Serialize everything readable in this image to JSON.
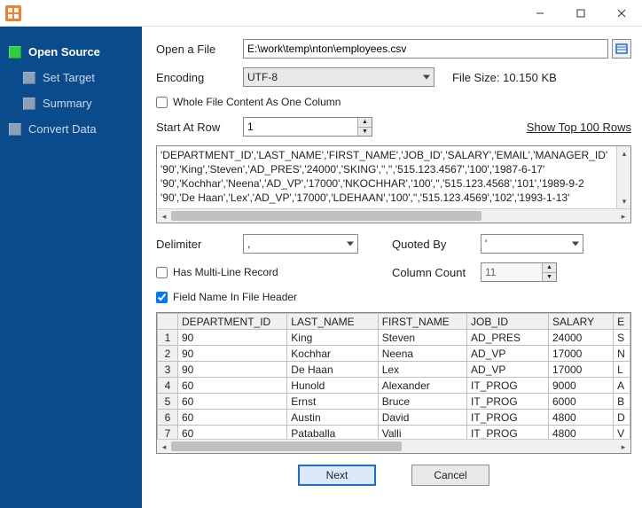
{
  "sidebar": {
    "items": [
      {
        "label": "Open Source",
        "active": true
      },
      {
        "label": "Set Target"
      },
      {
        "label": "Summary"
      },
      {
        "label": "Convert Data"
      }
    ]
  },
  "open_file": {
    "label": "Open a File",
    "value": "E:\\work\\temp\\nton\\employees.csv"
  },
  "encoding": {
    "label": "Encoding",
    "value": "UTF-8"
  },
  "file_size": {
    "label": "File Size:",
    "value": "10.150 KB"
  },
  "whole_file_chk": "Whole File Content As One Column",
  "start_at_row": {
    "label": "Start At Row",
    "value": "1"
  },
  "show_top_rows": {
    "label": "Show Top 100 Rows"
  },
  "preview_lines": [
    "'DEPARTMENT_ID','LAST_NAME','FIRST_NAME','JOB_ID','SALARY','EMAIL','MANAGER_ID'",
    "'90','King','Steven','AD_PRES','24000','SKING','','','515.123.4567','100','1987-6-17'",
    "'90','Kochhar','Neena','AD_VP','17000','NKOCHHAR','100','','515.123.4568','101','1989-9-2",
    "'90','De Haan','Lex','AD_VP','17000','LDEHAAN','100','','515.123.4569','102','1993-1-13'"
  ],
  "delimiter": {
    "label": "Delimiter",
    "value": ","
  },
  "quoted_by": {
    "label": "Quoted By",
    "value": "'"
  },
  "multi_line_chk": "Has Multi-Line Record",
  "column_count": {
    "label": "Column Count",
    "value": "11"
  },
  "field_header_chk": "Field Name In File Header",
  "grid": {
    "columns": [
      "DEPARTMENT_ID",
      "LAST_NAME",
      "FIRST_NAME",
      "JOB_ID",
      "SALARY"
    ],
    "tail_header": "E",
    "rows": [
      [
        "90",
        "King",
        "Steven",
        "AD_PRES",
        "24000",
        "S"
      ],
      [
        "90",
        "Kochhar",
        "Neena",
        "AD_VP",
        "17000",
        "N"
      ],
      [
        "90",
        "De Haan",
        "Lex",
        "AD_VP",
        "17000",
        "L"
      ],
      [
        "60",
        "Hunold",
        "Alexander",
        "IT_PROG",
        "9000",
        "A"
      ],
      [
        "60",
        "Ernst",
        "Bruce",
        "IT_PROG",
        "6000",
        "B"
      ],
      [
        "60",
        "Austin",
        "David",
        "IT_PROG",
        "4800",
        "D"
      ],
      [
        "60",
        "Pataballa",
        "Valli",
        "IT_PROG",
        "4800",
        "V"
      ]
    ]
  },
  "buttons": {
    "next": "Next",
    "cancel": "Cancel"
  },
  "colors": {
    "sidebar_bg": "#0a4b8c",
    "accent_green": "#2ecc40",
    "primary_border": "#1a6fd6"
  }
}
